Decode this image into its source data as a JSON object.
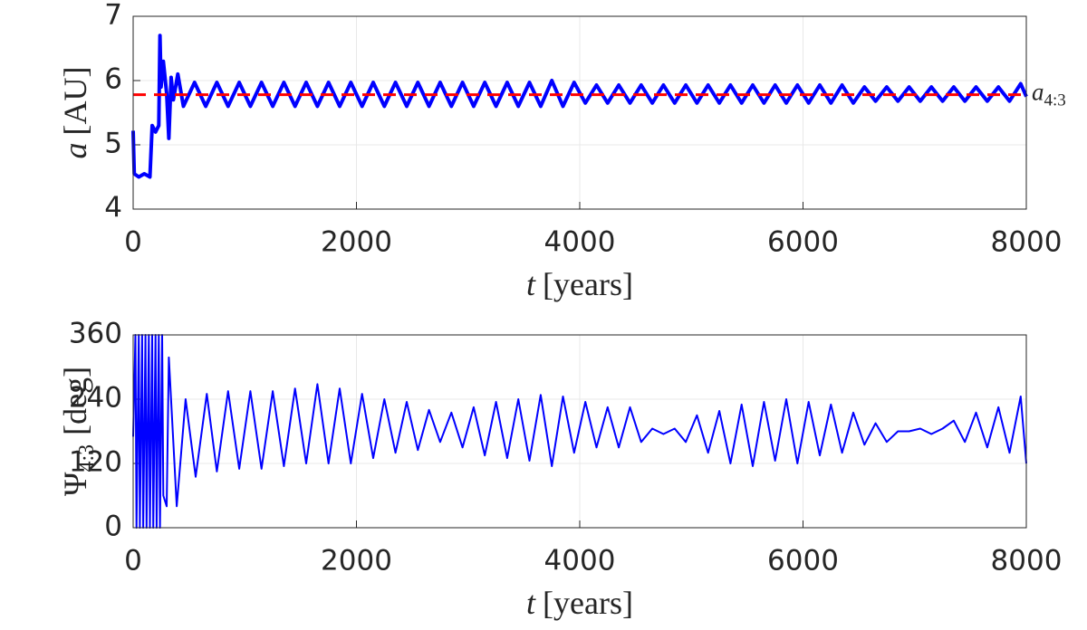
{
  "chart_data": [
    {
      "type": "line",
      "color": "#0000ff",
      "line_width": 4,
      "xlabel": "t",
      "xlabel_unit": "[years]",
      "ylabel": "a",
      "ylabel_unit": "[AU]",
      "xlim": [
        0,
        8000
      ],
      "xticks": [
        0,
        2000,
        4000,
        6000,
        8000
      ],
      "ylim": [
        4,
        7
      ],
      "yticks": [
        4,
        5,
        6,
        7
      ],
      "grid": true,
      "hline": {
        "value": 5.78,
        "color": "#ff0000",
        "label": "a",
        "label_subscript": "4:3"
      },
      "x": [
        0,
        10,
        50,
        100,
        150,
        170,
        200,
        230,
        240,
        250,
        270,
        300,
        320,
        340,
        360,
        400,
        450,
        550,
        650,
        750,
        850,
        950,
        1050,
        1150,
        1250,
        1350,
        1450,
        1550,
        1650,
        1750,
        1850,
        1950,
        2050,
        2150,
        2250,
        2350,
        2450,
        2550,
        2650,
        2750,
        2850,
        2950,
        3050,
        3150,
        3250,
        3350,
        3450,
        3550,
        3650,
        3750,
        3850,
        3950,
        4050,
        4150,
        4250,
        4350,
        4450,
        4550,
        4650,
        4750,
        4850,
        4950,
        5050,
        5150,
        5250,
        5350,
        5450,
        5550,
        5650,
        5750,
        5850,
        5950,
        6050,
        6150,
        6250,
        6350,
        6450,
        6550,
        6650,
        6750,
        6850,
        6950,
        7050,
        7150,
        7250,
        7350,
        7450,
        7550,
        7650,
        7750,
        7850,
        7950,
        8000
      ],
      "values": [
        5.22,
        4.55,
        4.5,
        4.55,
        4.5,
        5.3,
        5.2,
        5.3,
        6.7,
        5.9,
        6.3,
        5.8,
        5.1,
        6.05,
        5.7,
        6.1,
        5.6,
        5.97,
        5.6,
        5.97,
        5.6,
        5.97,
        5.6,
        5.97,
        5.6,
        5.97,
        5.6,
        5.97,
        5.6,
        5.97,
        5.6,
        5.97,
        5.6,
        5.97,
        5.6,
        5.97,
        5.6,
        5.97,
        5.6,
        5.97,
        5.6,
        5.97,
        5.6,
        5.97,
        5.6,
        5.97,
        5.6,
        5.97,
        5.6,
        6.0,
        5.6,
        5.97,
        5.65,
        5.93,
        5.65,
        5.93,
        5.65,
        5.93,
        5.65,
        5.93,
        5.65,
        5.93,
        5.65,
        5.93,
        5.65,
        5.93,
        5.65,
        5.93,
        5.65,
        5.93,
        5.65,
        5.93,
        5.65,
        5.93,
        5.65,
        5.93,
        5.65,
        5.9,
        5.68,
        5.9,
        5.68,
        5.9,
        5.68,
        5.9,
        5.68,
        5.9,
        5.68,
        5.9,
        5.68,
        5.9,
        5.68,
        5.95,
        5.75
      ]
    },
    {
      "type": "line",
      "color": "#0000ff",
      "line_width": 2,
      "xlabel": "t",
      "xlabel_unit": "[years]",
      "ylabel": "Ψ",
      "ylabel_subscript": "4:3",
      "ylabel_unit": "[deg]",
      "xlim": [
        0,
        8000
      ],
      "xticks": [
        0,
        2000,
        4000,
        6000,
        8000
      ],
      "ylim": [
        0,
        360
      ],
      "yticks": [
        0,
        120,
        240,
        360
      ],
      "grid": true,
      "x": [
        0,
        20,
        30,
        50,
        60,
        80,
        90,
        110,
        120,
        140,
        150,
        170,
        180,
        200,
        210,
        230,
        240,
        260,
        270,
        300,
        320,
        390,
        470,
        560,
        660,
        750,
        850,
        950,
        1050,
        1150,
        1250,
        1350,
        1450,
        1550,
        1650,
        1750,
        1850,
        1950,
        2050,
        2150,
        2250,
        2350,
        2450,
        2550,
        2650,
        2750,
        2850,
        2950,
        3050,
        3150,
        3250,
        3350,
        3450,
        3550,
        3650,
        3750,
        3850,
        3950,
        4050,
        4150,
        4250,
        4350,
        4450,
        4550,
        4650,
        4750,
        4850,
        4950,
        5050,
        5150,
        5250,
        5350,
        5450,
        5550,
        5650,
        5750,
        5850,
        5950,
        6050,
        6150,
        6250,
        6350,
        6450,
        6550,
        6650,
        6750,
        6850,
        6950,
        7050,
        7150,
        7250,
        7350,
        7450,
        7550,
        7650,
        7750,
        7850,
        7950,
        8000
      ],
      "values": [
        170,
        360,
        0,
        360,
        0,
        360,
        0,
        360,
        0,
        360,
        0,
        360,
        0,
        360,
        0,
        360,
        0,
        360,
        60,
        40,
        318,
        40,
        240,
        95,
        250,
        105,
        255,
        110,
        255,
        110,
        255,
        115,
        260,
        120,
        268,
        120,
        260,
        120,
        250,
        130,
        240,
        140,
        235,
        145,
        220,
        160,
        215,
        150,
        225,
        135,
        235,
        130,
        240,
        125,
        248,
        115,
        245,
        140,
        235,
        150,
        225,
        150,
        225,
        160,
        185,
        175,
        185,
        160,
        210,
        140,
        218,
        120,
        230,
        115,
        235,
        125,
        240,
        120,
        235,
        135,
        230,
        140,
        215,
        155,
        195,
        160,
        180,
        180,
        185,
        175,
        185,
        200,
        160,
        215,
        150,
        225,
        140,
        245,
        120
      ]
    }
  ]
}
